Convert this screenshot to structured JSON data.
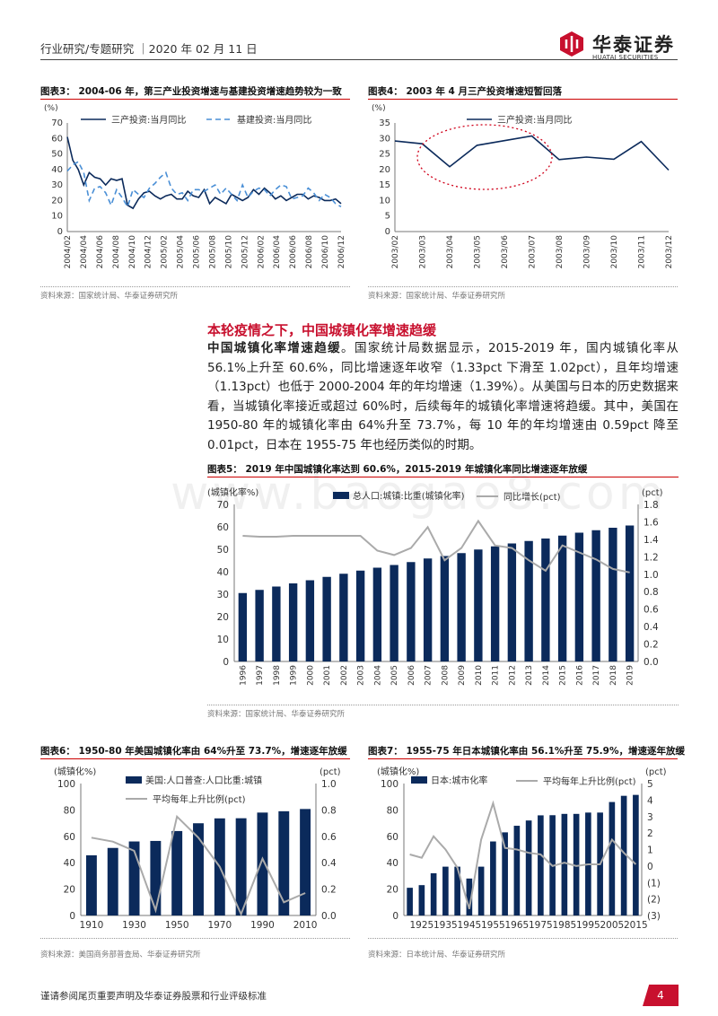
{
  "header": {
    "text": "行业研究/专题研究 ｜2020 年 02 月 11 日"
  },
  "logo": {
    "cn": "华泰证券",
    "en": "HUATAI SECURITIES"
  },
  "figures": {
    "fig3_title": "图表3：   2004-06 年，第三产业投资增速与基建投资增速趋势较为一致",
    "fig4_title": "图表4：   2003 年 4 月三产投资增速短暂回落",
    "fig5_title": "图表5：   2019 年中国城镇化率达到 60.6%，2015-2019 年城镇化率同比增速逐年放缓",
    "fig6_title": "图表6：   1950-80 年美国城镇化率由 64%升至 73.7%，增速逐年放缓",
    "fig7_title": "图表7：   1955-75 年日本城镇化率由 56.1%升至 75.9%，增速逐年放缓"
  },
  "sources": {
    "fig3": "资料来源：国家统计局、华泰证券研究所",
    "fig4": "资料来源：国家统计局、华泰证券研究所",
    "fig5": "资料来源：国家统计局、华泰证券研究所",
    "fig6": "资料来源：美国商务部普查局、华泰证券研究所",
    "fig7": "资料来源：日本统计局、华泰证券研究所"
  },
  "section": {
    "title": "本轮疫情之下，中国城镇化率增速趋缓",
    "lead": "中国城镇化率增速趋缓",
    "body": "。国家统计局数据显示，2015-2019 年，国内城镇化率从 56.1%上升至 60.6%，同比增速逐年收窄（1.33pct 下滑至 1.02pct），且年均增速（1.13pct）也低于 2000-2004 年的年均增速（1.39%）。从美国与日本的历史数据来看，当城镇化率接近或超过 60%时，后续每年的城镇化率增速将趋缓。其中，美国在 1950-80 年的城镇化率由 64%升至 73.7%，每 10 年的年均增速由 0.59pct 降至 0.01pct，日本在 1955-75 年也经历类似的时期。"
  },
  "watermark": "www.baogao8.com",
  "footer": {
    "text": "谨请参阅尾页重要声明及华泰证券股票和行业评级标准",
    "page": "4"
  },
  "colors": {
    "navy": "#0b2a5b",
    "blue": "#4a8fd6",
    "gray": "#aaaaaa",
    "red": "#c8102e"
  },
  "chart_data": [
    {
      "id": "fig3",
      "type": "line",
      "ylabel": "(%)",
      "ylim": [
        0,
        70
      ],
      "yticks": [
        0,
        10,
        20,
        30,
        40,
        50,
        60,
        70
      ],
      "xticklabels": [
        "2004/02",
        "2004/04",
        "2004/06",
        "2004/08",
        "2004/10",
        "2004/12",
        "2005/02",
        "2005/04",
        "2005/06",
        "2005/08",
        "2005/10",
        "2005/12",
        "2006/02",
        "2006/04",
        "2006/06",
        "2006/08",
        "2006/10",
        "2006/12"
      ],
      "series": [
        {
          "name": "三产投资:当月同比",
          "style": "solid",
          "values": [
            61,
            46,
            40,
            30,
            38,
            35,
            34,
            30,
            34,
            33,
            34,
            17,
            15,
            21,
            25,
            26,
            23,
            21,
            23,
            24,
            21,
            21,
            26,
            23,
            22,
            27,
            18,
            22,
            20,
            18,
            24,
            22,
            20,
            22,
            27,
            24,
            28,
            25,
            21,
            23,
            20,
            22,
            24,
            24,
            21,
            23,
            22,
            20,
            20,
            21,
            18
          ]
        },
        {
          "name": "基建投资:当月同比",
          "style": "dashed",
          "values": [
            39,
            43,
            45,
            38,
            20,
            28,
            29,
            25,
            17,
            27,
            22,
            16,
            27,
            24,
            22,
            28,
            31,
            35,
            38,
            28,
            24,
            25,
            20,
            27,
            27,
            26,
            28,
            30,
            24,
            28,
            24,
            20,
            30,
            22,
            26,
            28,
            27,
            23,
            27,
            30,
            29,
            21,
            22,
            23,
            28,
            25,
            20,
            24,
            22,
            18,
            16
          ]
        }
      ]
    },
    {
      "id": "fig4",
      "type": "line",
      "ylabel": "(%)",
      "ylim": [
        0,
        35
      ],
      "yticks": [
        0,
        5,
        10,
        15,
        20,
        25,
        30,
        35
      ],
      "xticklabels": [
        "2003/02",
        "2003/03",
        "2003/04",
        "2003/05",
        "2003/06",
        "2003/07",
        "2003/08",
        "2003/09",
        "2003/10",
        "2003/11",
        "2003/12"
      ],
      "series": [
        {
          "name": "三产投资:当月同比",
          "style": "solid",
          "values": [
            29.2,
            28.3,
            20.9,
            27.8,
            29.3,
            30.8,
            23.2,
            24.0,
            23.3,
            29.0,
            19.8
          ]
        }
      ]
    },
    {
      "id": "fig5",
      "type": "bar",
      "ylabel": "(城镇化率%)",
      "y2label": "(pct)",
      "ylim": [
        0,
        70
      ],
      "y2lim": [
        0,
        1.8
      ],
      "yticks": [
        0,
        10,
        20,
        30,
        40,
        50,
        60,
        70
      ],
      "y2ticks": [
        "0.0",
        "0.2",
        "0.4",
        "0.6",
        "0.8",
        "1.0",
        "1.2",
        "1.4",
        "1.6",
        "1.8"
      ],
      "categories": [
        "1996",
        "1997",
        "1998",
        "1999",
        "2000",
        "2001",
        "2002",
        "2003",
        "2004",
        "2005",
        "2006",
        "2007",
        "2008",
        "2009",
        "2010",
        "2011",
        "2012",
        "2013",
        "2014",
        "2015",
        "2016",
        "2017",
        "2018",
        "2019"
      ],
      "series": [
        {
          "name": "总人口:城镇:比重(城镇化率)",
          "kind": "bar",
          "values": [
            30.5,
            31.9,
            33.4,
            34.8,
            36.2,
            37.7,
            39.1,
            40.5,
            41.8,
            43.0,
            44.3,
            45.9,
            47.0,
            48.3,
            49.9,
            51.3,
            52.6,
            53.7,
            54.8,
            56.1,
            57.4,
            58.5,
            59.6,
            60.6
          ]
        },
        {
          "name": "同比增长(pct)",
          "kind": "line",
          "axis": "right",
          "values": [
            1.44,
            1.43,
            1.43,
            1.44,
            1.44,
            1.44,
            1.44,
            1.44,
            1.27,
            1.22,
            1.3,
            1.54,
            1.16,
            1.3,
            1.61,
            1.33,
            1.3,
            1.16,
            1.04,
            1.33,
            1.25,
            1.17,
            1.06,
            1.02
          ]
        }
      ]
    },
    {
      "id": "fig6",
      "type": "bar",
      "ylabel": "(城镇化%)",
      "y2label": "(pct)",
      "ylim": [
        0,
        100
      ],
      "y2lim": [
        0,
        1.0
      ],
      "yticks": [
        0,
        20,
        40,
        60,
        80,
        100
      ],
      "y2ticks": [
        "0.0",
        "0.2",
        "0.4",
        "0.6",
        "0.8",
        "1.0"
      ],
      "xticklabels": [
        "1910",
        "1930",
        "1950",
        "1970",
        "1990",
        "2010"
      ],
      "categories": [
        1910,
        1920,
        1930,
        1940,
        1950,
        1960,
        1970,
        1980,
        1990,
        2000,
        2010
      ],
      "series": [
        {
          "name": "美国:人口普查:人口比重:城镇",
          "kind": "bar",
          "values": [
            45.6,
            51.2,
            56.1,
            56.5,
            64.0,
            69.9,
            73.6,
            73.7,
            78.0,
            79.0,
            80.7
          ]
        },
        {
          "name": "平均每年上升比例(pct)",
          "kind": "line",
          "axis": "right",
          "values": [
            0.59,
            0.56,
            0.49,
            0.04,
            0.75,
            0.59,
            0.37,
            0.01,
            0.43,
            0.1,
            0.17
          ]
        }
      ]
    },
    {
      "id": "fig7",
      "type": "bar",
      "ylabel": "(城镇化%)",
      "y2label": "(pct)",
      "ylim": [
        0,
        100
      ],
      "y2lim": [
        -3,
        5
      ],
      "yticks": [
        0,
        20,
        40,
        60,
        80,
        100
      ],
      "y2ticks": [
        "(3)",
        "(2)",
        "(1)",
        "0",
        "1",
        "2",
        "3",
        "4",
        "5"
      ],
      "xticklabels": [
        "1925",
        "1935",
        "1945",
        "1955",
        "1965",
        "1975",
        "1985",
        "1995",
        "2005",
        "2015"
      ],
      "categories": [
        1920,
        1925,
        1930,
        1935,
        1940,
        1945,
        1950,
        1955,
        1960,
        1965,
        1970,
        1975,
        1980,
        1985,
        1990,
        1995,
        2000,
        2005,
        2010,
        2015
      ],
      "series": [
        {
          "name": "日本:城市化率",
          "kind": "bar",
          "values": [
            21.0,
            23.0,
            32.0,
            37.0,
            37.0,
            28.0,
            37.0,
            56.1,
            63.0,
            68.0,
            72.0,
            75.9,
            76.0,
            77.0,
            77.0,
            78.0,
            78.0,
            86.0,
            90.7,
            91.4
          ]
        },
        {
          "name": "平均每年上升比例(pct)",
          "kind": "line",
          "axis": "right",
          "values": [
            0.7,
            0.5,
            1.8,
            1.0,
            -0.1,
            -2.6,
            1.6,
            3.8,
            1.1,
            1.0,
            0.8,
            0.7,
            0.0,
            0.2,
            0.0,
            0.1,
            0.1,
            1.6,
            0.8,
            0.1
          ]
        }
      ]
    }
  ]
}
